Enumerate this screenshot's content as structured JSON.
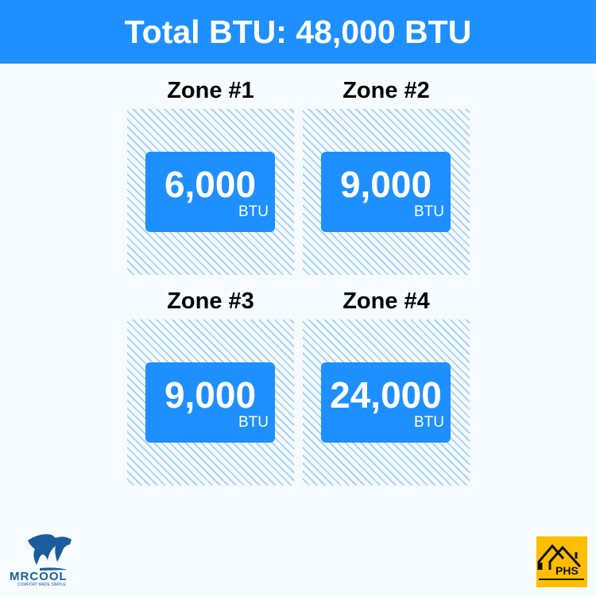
{
  "header": {
    "title": "Total BTU: 48,000 BTU"
  },
  "zones": [
    {
      "title": "Zone #1",
      "value": "6,000",
      "unit": "BTU"
    },
    {
      "title": "Zone #2",
      "value": "9,000",
      "unit": "BTU"
    },
    {
      "title": "Zone #3",
      "value": "9,000",
      "unit": "BTU"
    },
    {
      "title": "Zone #4",
      "value": "24,000",
      "unit": "BTU"
    }
  ],
  "logos": {
    "mrcool": {
      "name": "MRCOOL",
      "tagline": "COMFORT MADE SIMPLE"
    },
    "phs": {
      "name": "PHS"
    }
  },
  "colors": {
    "accent": "#1e8fff",
    "hatch": "#a9d3f8",
    "phs": "#fdbd00",
    "mrcool": "#1a5c9e"
  }
}
